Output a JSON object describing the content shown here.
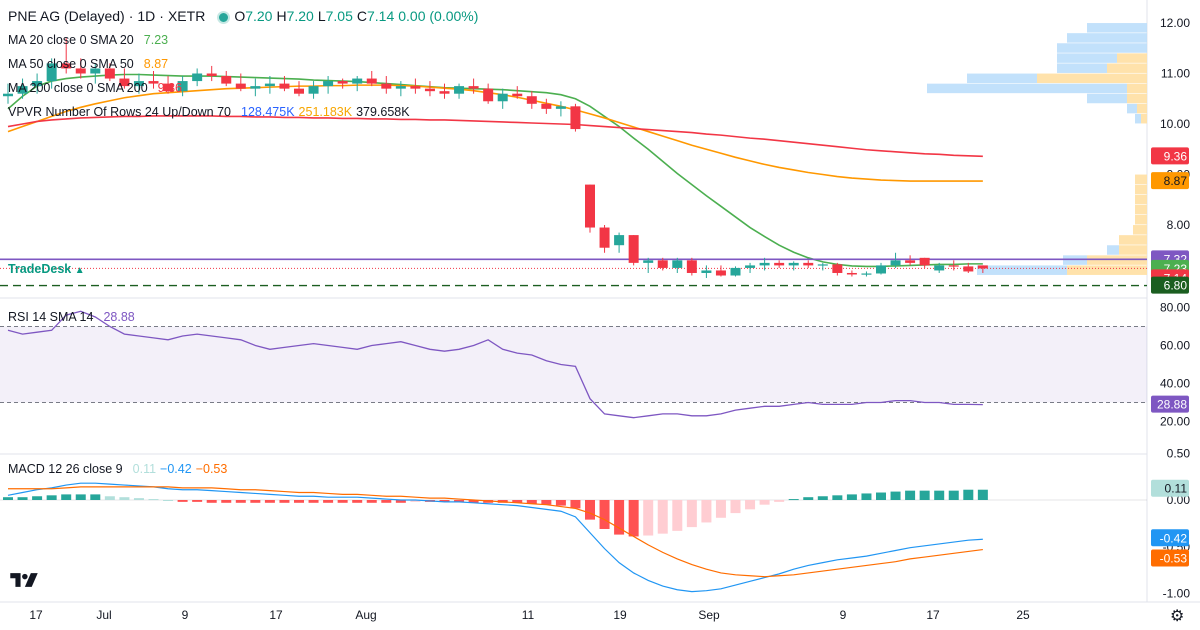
{
  "header": {
    "symbol": "PNE AG (Delayed)",
    "separator1": "·",
    "interval": "1D",
    "separator2": "·",
    "exchange": "XETR",
    "o_label": "O",
    "o_value": "7.20",
    "h_label": "H",
    "h_value": "7.20",
    "l_label": "L",
    "l_value": "7.05",
    "c_label": "C",
    "c_value": "7.14",
    "change": "0.00 (0.00%)"
  },
  "indicators": {
    "ma20": {
      "label": "MA 20 close 0 SMA 20",
      "value": "7.23",
      "color": "#4caf50"
    },
    "ma50": {
      "label": "MA 50 close 0 SMA 50",
      "value": "8.87",
      "color": "#ff9800"
    },
    "ma200": {
      "label": "MA 200 close 0 SMA 200",
      "value": "9.36",
      "color": "#f23645"
    },
    "vpvr": {
      "label": "VPVR Number Of Rows 24 Up/Down 70",
      "v1": "128.475K",
      "v2": "251.183K",
      "v3": "379.658K",
      "c1": "#2962ff",
      "c2": "#f7a600"
    },
    "rsi": {
      "label": "RSI 14 SMA 14",
      "value": "28.88",
      "color": "#7e57c2"
    },
    "macd": {
      "label": "MACD 12 26 close 9",
      "hist": "0.11",
      "macd": "−0.42",
      "signal": "−0.53",
      "hist_color": "#b2dfdb",
      "macd_color": "#2196f3",
      "signal_color": "#ff6d00"
    }
  },
  "branding": {
    "tradedesk": "TradeDesk",
    "tradedesk_arrow": "▲"
  },
  "colors": {
    "up": "#26a69a",
    "down": "#f23645",
    "price_line": "#7e57c2",
    "support": "#1b5e20"
  },
  "chart_data": {
    "type": "candlestick",
    "title": "PNE AG (Delayed) · 1D · XETR",
    "price_axis": {
      "ticks": [
        "12.00",
        "11.00",
        "10.00",
        "9.00",
        "8.00"
      ],
      "range": [
        6.55,
        12.25
      ]
    },
    "rsi_axis": {
      "ticks": [
        "80.00",
        "60.00",
        "40.00",
        "20.00"
      ],
      "range": [
        10,
        82
      ],
      "bands": [
        30,
        70
      ]
    },
    "macd_axis": {
      "ticks": [
        "0.50",
        "0.00",
        "-0.50",
        "-1.00"
      ],
      "range": [
        -1.12,
        0.6
      ]
    },
    "x_ticks": [
      "17",
      "Jul",
      "9",
      "17",
      "Aug",
      "11",
      "19",
      "Sep",
      "9",
      "17",
      "25"
    ],
    "badges": {
      "ma200": "9.36",
      "ma50": "8.87",
      "level": "7.32",
      "ma20": "7.23",
      "close": "7.14",
      "support": "6.80",
      "rsi": "28.88",
      "macd_hist": "0.11",
      "macd": "-0.42",
      "macd_signal": "-0.53"
    },
    "candles": [
      [
        10.55,
        10.8,
        10.4,
        10.6
      ],
      [
        10.6,
        10.9,
        10.5,
        10.75
      ],
      [
        10.75,
        11.0,
        10.6,
        10.85
      ],
      [
        10.85,
        11.3,
        10.7,
        11.2
      ],
      [
        11.2,
        11.7,
        11.0,
        11.1
      ],
      [
        11.1,
        11.3,
        10.9,
        11.0
      ],
      [
        11.0,
        11.2,
        10.8,
        11.1
      ],
      [
        11.1,
        11.2,
        10.85,
        10.9
      ],
      [
        10.9,
        11.1,
        10.7,
        10.75
      ],
      [
        10.75,
        11.0,
        10.6,
        10.85
      ],
      [
        10.85,
        11.05,
        10.7,
        10.8
      ],
      [
        10.8,
        10.95,
        10.6,
        10.65
      ],
      [
        10.65,
        10.95,
        10.55,
        10.85
      ],
      [
        10.85,
        11.1,
        10.75,
        11.0
      ],
      [
        11.0,
        11.15,
        10.85,
        10.95
      ],
      [
        10.95,
        11.05,
        10.75,
        10.8
      ],
      [
        10.8,
        11.0,
        10.65,
        10.7
      ],
      [
        10.7,
        10.9,
        10.55,
        10.75
      ],
      [
        10.75,
        10.95,
        10.6,
        10.8
      ],
      [
        10.8,
        10.95,
        10.65,
        10.7
      ],
      [
        10.7,
        10.85,
        10.55,
        10.6
      ],
      [
        10.6,
        10.85,
        10.5,
        10.75
      ],
      [
        10.75,
        10.95,
        10.6,
        10.85
      ],
      [
        10.85,
        10.9,
        10.7,
        10.8
      ],
      [
        10.8,
        10.95,
        10.65,
        10.9
      ],
      [
        10.9,
        11.05,
        10.75,
        10.8
      ],
      [
        10.8,
        10.95,
        10.6,
        10.7
      ],
      [
        10.7,
        10.85,
        10.55,
        10.75
      ],
      [
        10.75,
        10.9,
        10.6,
        10.7
      ],
      [
        10.7,
        10.85,
        10.55,
        10.65
      ],
      [
        10.65,
        10.8,
        10.5,
        10.6
      ],
      [
        10.6,
        10.8,
        10.5,
        10.75
      ],
      [
        10.75,
        10.9,
        10.6,
        10.7
      ],
      [
        10.7,
        10.8,
        10.4,
        10.45
      ],
      [
        10.45,
        10.7,
        10.3,
        10.6
      ],
      [
        10.6,
        10.75,
        10.5,
        10.55
      ],
      [
        10.55,
        10.65,
        10.3,
        10.4
      ],
      [
        10.4,
        10.5,
        10.2,
        10.3
      ],
      [
        10.3,
        10.45,
        10.15,
        10.35
      ],
      [
        10.35,
        10.4,
        9.85,
        9.9
      ],
      [
        8.8,
        8.8,
        7.85,
        7.95
      ],
      [
        7.95,
        8.0,
        7.45,
        7.55
      ],
      [
        7.6,
        7.85,
        7.45,
        7.8
      ],
      [
        7.8,
        7.8,
        7.2,
        7.25
      ],
      [
        7.25,
        7.35,
        7.05,
        7.3
      ],
      [
        7.3,
        7.35,
        7.1,
        7.15
      ],
      [
        7.15,
        7.35,
        7.05,
        7.3
      ],
      [
        7.3,
        7.35,
        7.0,
        7.05
      ],
      [
        7.05,
        7.2,
        6.95,
        7.1
      ],
      [
        7.1,
        7.2,
        6.98,
        7.0
      ],
      [
        7.0,
        7.18,
        6.98,
        7.15
      ],
      [
        7.15,
        7.25,
        7.05,
        7.2
      ],
      [
        7.2,
        7.35,
        7.1,
        7.25
      ],
      [
        7.25,
        7.3,
        7.15,
        7.2
      ],
      [
        7.2,
        7.28,
        7.1,
        7.25
      ],
      [
        7.25,
        7.3,
        7.15,
        7.2
      ],
      [
        7.2,
        7.25,
        7.1,
        7.22
      ],
      [
        7.22,
        7.25,
        7.0,
        7.05
      ],
      [
        7.05,
        7.1,
        6.98,
        7.02
      ],
      [
        7.02,
        7.08,
        6.98,
        7.04
      ],
      [
        7.04,
        7.25,
        7.02,
        7.2
      ],
      [
        7.2,
        7.45,
        7.15,
        7.3
      ],
      [
        7.3,
        7.4,
        7.2,
        7.25
      ],
      [
        7.35,
        7.35,
        7.15,
        7.2
      ],
      [
        7.1,
        7.25,
        7.05,
        7.2
      ],
      [
        7.2,
        7.3,
        7.1,
        7.18
      ],
      [
        7.18,
        7.25,
        7.05,
        7.08
      ],
      [
        7.2,
        7.2,
        7.05,
        7.14
      ]
    ],
    "series": [
      {
        "name": "MA 20",
        "values": [
          10.3,
          10.55,
          10.75,
          10.85,
          10.9,
          10.93,
          10.95,
          10.97,
          10.98,
          10.98,
          10.97,
          10.96,
          10.95,
          10.95,
          10.95,
          10.94,
          10.93,
          10.92,
          10.91,
          10.9,
          10.89,
          10.87,
          10.86,
          10.85,
          10.84,
          10.82,
          10.8,
          10.78,
          10.76,
          10.74,
          10.72,
          10.71,
          10.7,
          10.69,
          10.68,
          10.66,
          10.64,
          10.62,
          10.58,
          10.5,
          10.35,
          10.15,
          9.95,
          9.72,
          9.5,
          9.26,
          9.02,
          8.8,
          8.58,
          8.37,
          8.16,
          7.95,
          7.77,
          7.6,
          7.46,
          7.35,
          7.27,
          7.22,
          7.19,
          7.18,
          7.18,
          7.19,
          7.2,
          7.21,
          7.22,
          7.22,
          7.23,
          7.23
        ]
      },
      {
        "name": "MA 50",
        "values": [
          9.85,
          9.95,
          10.05,
          10.15,
          10.25,
          10.33,
          10.4,
          10.46,
          10.52,
          10.56,
          10.6,
          10.62,
          10.64,
          10.66,
          10.68,
          10.7,
          10.71,
          10.72,
          10.73,
          10.74,
          10.75,
          10.75,
          10.76,
          10.76,
          10.77,
          10.77,
          10.77,
          10.76,
          10.75,
          10.73,
          10.71,
          10.69,
          10.66,
          10.62,
          10.58,
          10.53,
          10.47,
          10.41,
          10.35,
          10.28,
          10.2,
          10.12,
          10.03,
          9.94,
          9.85,
          9.76,
          9.67,
          9.58,
          9.5,
          9.42,
          9.34,
          9.27,
          9.2,
          9.14,
          9.09,
          9.04,
          9.0,
          8.96,
          8.93,
          8.91,
          8.89,
          8.88,
          8.87,
          8.87,
          8.87,
          8.87,
          8.87,
          8.87
        ]
      },
      {
        "name": "MA 200",
        "values": [
          9.95,
          10.0,
          10.05,
          10.08,
          10.1,
          10.12,
          10.13,
          10.14,
          10.15,
          10.15,
          10.16,
          10.16,
          10.16,
          10.16,
          10.16,
          10.15,
          10.15,
          10.14,
          10.14,
          10.13,
          10.13,
          10.12,
          10.12,
          10.11,
          10.11,
          10.1,
          10.1,
          10.09,
          10.09,
          10.08,
          10.08,
          10.07,
          10.06,
          10.05,
          10.04,
          10.03,
          10.02,
          10.01,
          10.0,
          9.99,
          9.97,
          9.95,
          9.93,
          9.91,
          9.89,
          9.87,
          9.85,
          9.83,
          9.8,
          9.78,
          9.75,
          9.72,
          9.7,
          9.67,
          9.64,
          9.61,
          9.58,
          9.55,
          9.52,
          9.49,
          9.47,
          9.45,
          9.43,
          9.41,
          9.4,
          9.38,
          9.37,
          9.36
        ]
      },
      {
        "name": "RSI",
        "values": [
          68,
          66,
          67,
          68,
          76,
          78,
          75,
          70,
          66,
          65,
          64,
          63,
          65,
          66,
          65,
          64,
          63,
          60,
          58,
          59,
          60,
          61,
          60,
          59,
          58,
          60,
          61,
          62,
          60,
          58,
          57,
          58,
          60,
          63,
          58,
          56,
          55,
          52,
          50,
          49,
          32,
          24,
          23,
          22,
          23,
          24,
          24,
          23,
          23,
          24,
          26,
          27,
          28,
          28,
          29,
          30,
          29,
          29,
          29,
          30,
          30,
          31,
          31,
          30,
          30,
          29,
          29,
          28.88
        ]
      },
      {
        "name": "MACD",
        "values": [
          0.05,
          0.08,
          0.11,
          0.13,
          0.16,
          0.18,
          0.18,
          0.17,
          0.16,
          0.15,
          0.14,
          0.12,
          0.11,
          0.11,
          0.1,
          0.09,
          0.08,
          0.07,
          0.06,
          0.05,
          0.04,
          0.04,
          0.03,
          0.03,
          0.03,
          0.02,
          0.01,
          0.0,
          0.0,
          -0.01,
          -0.02,
          -0.02,
          -0.03,
          -0.04,
          -0.05,
          -0.06,
          -0.08,
          -0.1,
          -0.12,
          -0.18,
          -0.35,
          -0.52,
          -0.67,
          -0.78,
          -0.86,
          -0.92,
          -0.96,
          -0.98,
          -0.97,
          -0.95,
          -0.91,
          -0.87,
          -0.83,
          -0.79,
          -0.74,
          -0.7,
          -0.67,
          -0.64,
          -0.62,
          -0.6,
          -0.57,
          -0.54,
          -0.51,
          -0.49,
          -0.47,
          -0.45,
          -0.43,
          -0.42
        ]
      },
      {
        "name": "Signal",
        "values": [
          0.12,
          0.12,
          0.12,
          0.12,
          0.13,
          0.14,
          0.14,
          0.14,
          0.14,
          0.14,
          0.14,
          0.14,
          0.13,
          0.13,
          0.13,
          0.12,
          0.11,
          0.11,
          0.1,
          0.09,
          0.08,
          0.08,
          0.07,
          0.06,
          0.06,
          0.05,
          0.04,
          0.04,
          0.03,
          0.02,
          0.02,
          0.01,
          0.0,
          -0.01,
          -0.02,
          -0.03,
          -0.04,
          -0.05,
          -0.07,
          -0.09,
          -0.14,
          -0.21,
          -0.3,
          -0.39,
          -0.48,
          -0.56,
          -0.63,
          -0.69,
          -0.74,
          -0.78,
          -0.8,
          -0.81,
          -0.82,
          -0.81,
          -0.8,
          -0.78,
          -0.76,
          -0.74,
          -0.72,
          -0.7,
          -0.68,
          -0.66,
          -0.63,
          -0.61,
          -0.59,
          -0.57,
          -0.55,
          -0.53
        ]
      }
    ],
    "volume_profile": [
      {
        "price": 11.9,
        "up": 0.0,
        "down": 0.3
      },
      {
        "price": 11.7,
        "up": 0.0,
        "down": 0.4
      },
      {
        "price": 11.5,
        "up": 0.0,
        "down": 0.45
      },
      {
        "price": 11.3,
        "up": 0.15,
        "down": 0.3
      },
      {
        "price": 11.1,
        "up": 0.2,
        "down": 0.25
      },
      {
        "price": 10.9,
        "up": 0.55,
        "down": 0.35
      },
      {
        "price": 10.7,
        "up": 0.1,
        "down": 1.0
      },
      {
        "price": 10.5,
        "up": 0.1,
        "down": 0.2
      },
      {
        "price": 10.3,
        "up": 0.05,
        "down": 0.05
      },
      {
        "price": 10.1,
        "up": 0.03,
        "down": 0.03
      },
      {
        "price": 8.9,
        "up": 0.06,
        "down": 0.0
      },
      {
        "price": 8.7,
        "up": 0.06,
        "down": 0.0
      },
      {
        "price": 8.5,
        "up": 0.06,
        "down": 0.0
      },
      {
        "price": 8.3,
        "up": 0.06,
        "down": 0.0
      },
      {
        "price": 8.1,
        "up": 0.06,
        "down": 0.0
      },
      {
        "price": 7.9,
        "up": 0.07,
        "down": 0.0
      },
      {
        "price": 7.7,
        "up": 0.14,
        "down": 0.0
      },
      {
        "price": 7.5,
        "up": 0.14,
        "down": 0.06
      },
      {
        "price": 7.3,
        "up": 0.3,
        "down": 0.12
      },
      {
        "price": 7.1,
        "up": 0.4,
        "down": 0.45
      }
    ],
    "histogram": [
      0.03,
      0.03,
      0.04,
      0.05,
      0.06,
      0.06,
      0.06,
      0.04,
      0.03,
      0.02,
      0.01,
      0.0,
      -0.02,
      -0.02,
      -0.03,
      -0.03,
      -0.03,
      -0.03,
      -0.03,
      -0.03,
      -0.03,
      -0.03,
      -0.03,
      -0.03,
      -0.03,
      -0.03,
      -0.03,
      -0.03,
      -0.02,
      -0.02,
      -0.02,
      -0.02,
      -0.03,
      -0.03,
      -0.03,
      -0.03,
      -0.04,
      -0.05,
      -0.06,
      -0.09,
      -0.21,
      -0.31,
      -0.37,
      -0.39,
      -0.38,
      -0.36,
      -0.33,
      -0.29,
      -0.24,
      -0.19,
      -0.14,
      -0.1,
      -0.05,
      -0.02,
      0.01,
      0.03,
      0.04,
      0.05,
      0.06,
      0.07,
      0.08,
      0.09,
      0.1,
      0.1,
      0.1,
      0.1,
      0.11,
      0.11
    ]
  }
}
